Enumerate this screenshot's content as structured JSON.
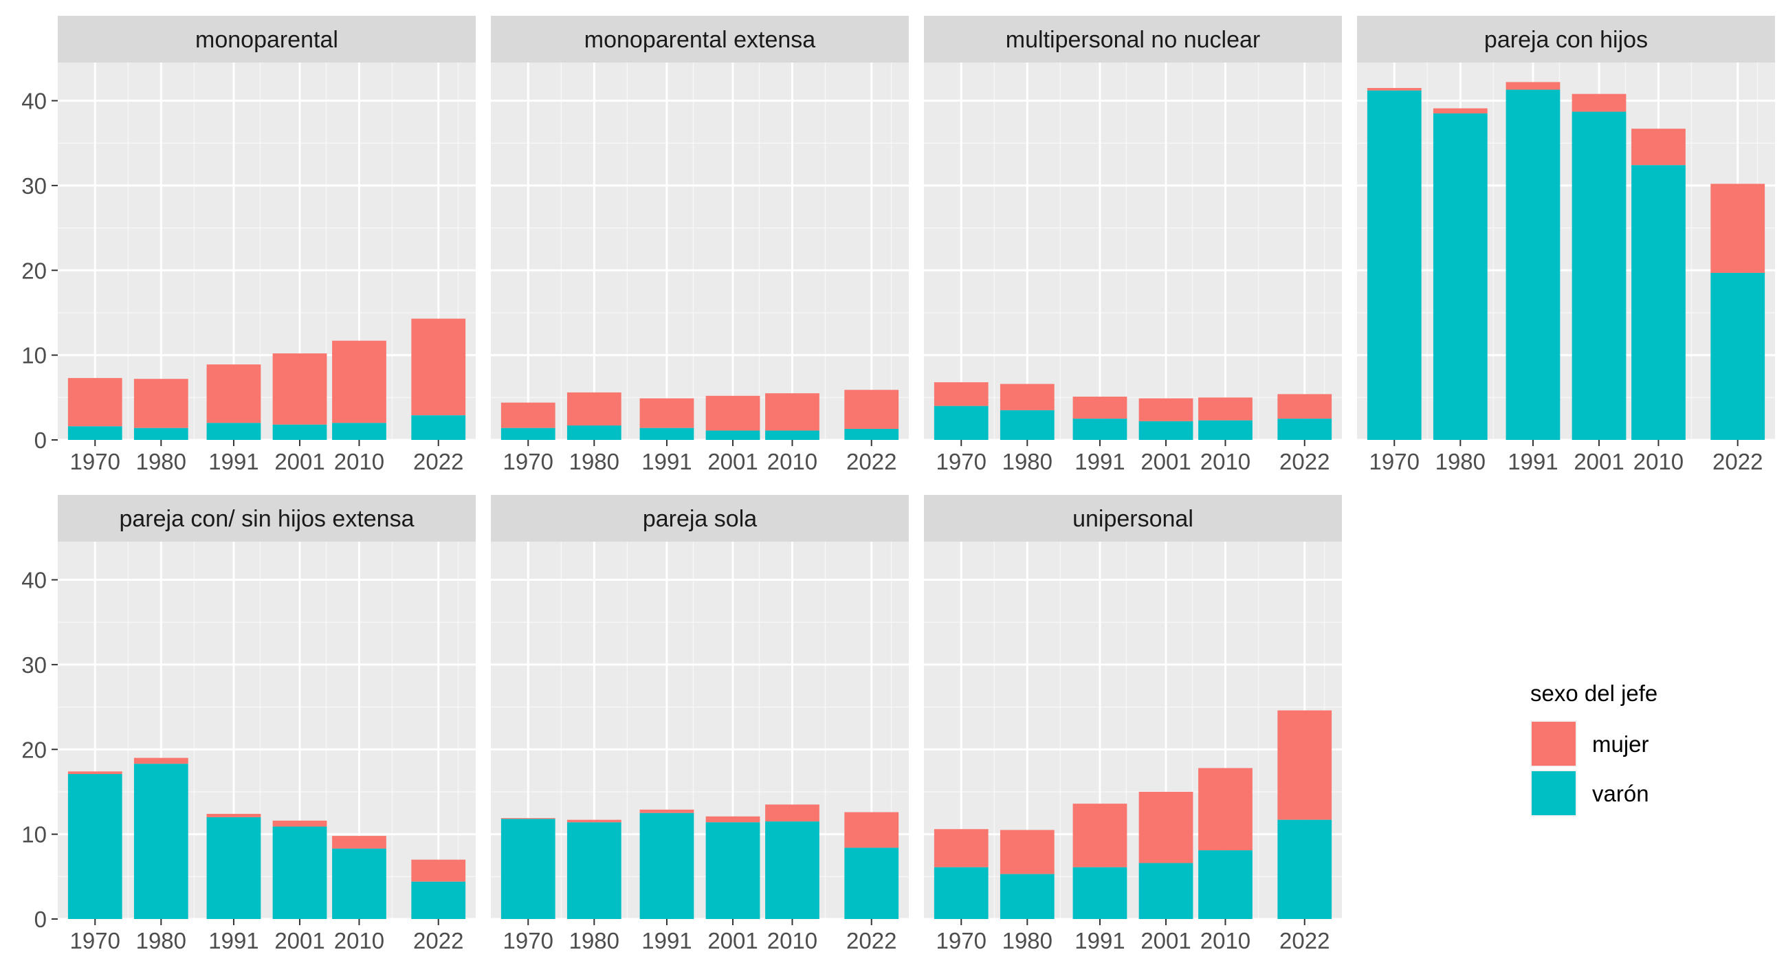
{
  "chart_data": {
    "type": "bar",
    "stacked": true,
    "facet_layout": "4 columns x 2 rows, shared y axis",
    "x_categories": [
      1970,
      1980,
      1991,
      2001,
      2010,
      2022
    ],
    "x_tick_labels": [
      "1970",
      "1980",
      "1991",
      "2001",
      "2010",
      "2022"
    ],
    "y_range": [
      0,
      44.5
    ],
    "y_ticks": [
      0,
      10,
      20,
      30,
      40
    ],
    "y_tick_labels": [
      "0",
      "10",
      "20",
      "30",
      "40"
    ],
    "legend": {
      "title": "sexo del jefe",
      "position": "right",
      "items": [
        {
          "label": "mujer",
          "color": "#F8766D"
        },
        {
          "label": "varón",
          "color": "#00BFC4"
        }
      ]
    },
    "series_colors": {
      "mujer": "#F8766D",
      "varon": "#00BFC4"
    },
    "panels": [
      {
        "title": "monoparental",
        "varon": [
          1.6,
          1.4,
          2.0,
          1.8,
          2.0,
          2.9
        ],
        "total": [
          7.3,
          7.2,
          8.9,
          10.2,
          11.7,
          14.3
        ]
      },
      {
        "title": "monoparental extensa",
        "varon": [
          1.4,
          1.7,
          1.4,
          1.1,
          1.1,
          1.3
        ],
        "total": [
          4.4,
          5.6,
          4.9,
          5.2,
          5.5,
          5.9
        ]
      },
      {
        "title": "multipersonal no nuclear",
        "varon": [
          4.0,
          3.5,
          2.5,
          2.2,
          2.3,
          2.5
        ],
        "total": [
          6.8,
          6.6,
          5.1,
          4.9,
          5.0,
          5.4
        ]
      },
      {
        "title": "pareja con hijos",
        "varon": [
          41.2,
          38.5,
          41.3,
          38.7,
          32.4,
          19.7
        ],
        "total": [
          41.5,
          39.1,
          42.2,
          40.8,
          36.7,
          30.2
        ]
      },
      {
        "title": "pareja con/ sin hijos extensa",
        "varon": [
          17.1,
          18.3,
          12.0,
          10.9,
          8.3,
          4.4
        ],
        "total": [
          17.4,
          19.0,
          12.4,
          11.6,
          9.8,
          7.0
        ]
      },
      {
        "title": "pareja sola",
        "varon": [
          11.8,
          11.4,
          12.5,
          11.4,
          11.5,
          8.4
        ],
        "total": [
          11.9,
          11.7,
          12.9,
          12.1,
          13.5,
          12.6
        ]
      },
      {
        "title": "unipersonal",
        "varon": [
          6.1,
          5.3,
          6.1,
          6.6,
          8.1,
          11.7
        ],
        "total": [
          10.6,
          10.5,
          13.6,
          15.0,
          17.8,
          24.6
        ]
      }
    ]
  }
}
